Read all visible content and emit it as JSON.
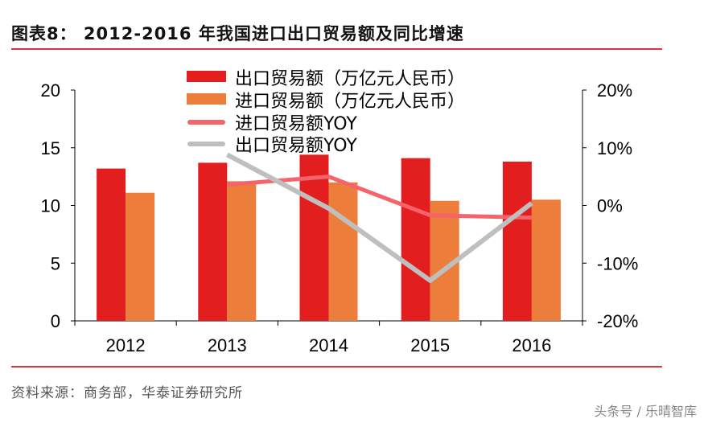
{
  "title": "图表8：  2012-2016 年我国进口出口贸易额及同比增速",
  "source": "资料来源：商务部，华泰证券研究所",
  "watermark": "头条号 / 乐晴智库",
  "chart_data": {
    "type": "bar",
    "categories": [
      "2012",
      "2013",
      "2014",
      "2015",
      "2016"
    ],
    "left_axis": {
      "ylim": [
        0,
        20
      ],
      "ticks": [
        "0",
        "5",
        "10",
        "15",
        "20"
      ]
    },
    "right_axis": {
      "ylim": [
        -20,
        20
      ],
      "ticks": [
        "-20%",
        "-10%",
        "0%",
        "10%",
        "20%"
      ]
    },
    "grid": false,
    "legend_placement": "top-center",
    "series": [
      {
        "name": "出口贸易额（万亿元人民币）",
        "kind": "bar",
        "axis": "left",
        "color": "#E31E1E",
        "values": [
          13.2,
          13.7,
          14.4,
          14.1,
          13.8
        ]
      },
      {
        "name": "进口贸易额（万亿元人民币）",
        "kind": "bar",
        "axis": "left",
        "color": "#ED7D3B",
        "values": [
          11.1,
          12.1,
          12.0,
          10.4,
          10.5
        ]
      },
      {
        "name": "进口贸易额YOY",
        "kind": "line",
        "axis": "right",
        "color": "#F4646A",
        "values": [
          null,
          3.6,
          5.0,
          -1.7,
          -2.1
        ]
      },
      {
        "name": "出口贸易额YOY",
        "kind": "line",
        "axis": "right",
        "color": "#BFBFBF",
        "values": [
          null,
          8.8,
          -0.5,
          -13.0,
          0.4
        ]
      }
    ]
  }
}
